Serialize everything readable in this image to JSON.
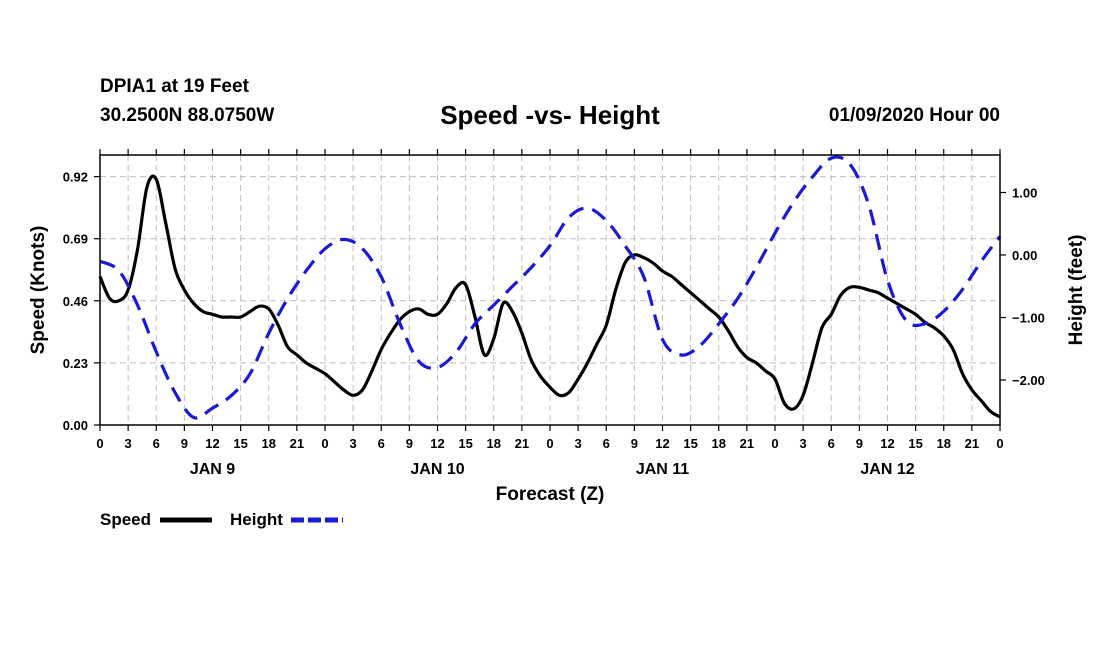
{
  "header": {
    "station": "DPIA1 at 19 Feet",
    "coords": "30.2500N 88.0750W",
    "title": "Speed -vs- Height",
    "datetime": "01/09/2020 Hour 00"
  },
  "colors": {
    "speed": "#000000",
    "height": "#1a1ad6",
    "grid": "#bfbfbf"
  },
  "chart_data": {
    "type": "line",
    "title": "Speed -vs- Height",
    "xlabel": "Forecast (Z)",
    "ylabel_left": "Speed (Knots)",
    "ylabel_right": "Height (feet)",
    "x_range_hours": [
      0,
      96
    ],
    "ylim_left": [
      0,
      1.0
    ],
    "ylim_right": [
      -2.72,
      1.6
    ],
    "yticks_left": [
      0.0,
      0.23,
      0.46,
      0.69,
      0.92
    ],
    "yticks_left_labels": [
      "0.00",
      "0.23",
      "0.46",
      "0.69",
      "0.92"
    ],
    "yticks_right": [
      1.0,
      0.0,
      -1.0,
      -2.0
    ],
    "yticks_right_labels": [
      "1.00",
      "0.00",
      "−1.00",
      "−2.00"
    ],
    "xticks_labels": [
      "0",
      "3",
      "6",
      "9",
      "12",
      "15",
      "18",
      "21",
      "0",
      "3",
      "6",
      "9",
      "12",
      "15",
      "18",
      "21",
      "0",
      "3",
      "6",
      "9",
      "12",
      "15",
      "18",
      "21",
      "0",
      "3",
      "6",
      "9",
      "12",
      "15",
      "18",
      "21",
      "0"
    ],
    "day_labels": [
      {
        "hour": 12,
        "label": "JAN 9"
      },
      {
        "hour": 36,
        "label": "JAN 10"
      },
      {
        "hour": 60,
        "label": "JAN 11"
      },
      {
        "hour": 84,
        "label": "JAN 12"
      }
    ],
    "legend": [
      {
        "name": "Speed",
        "style": "solid"
      },
      {
        "name": "Height",
        "style": "dashed"
      }
    ],
    "series": [
      {
        "name": "Speed",
        "axis": "left",
        "style": "solid",
        "x": [
          0,
          1,
          2,
          3,
          4,
          5,
          6,
          7,
          8,
          9,
          10,
          11,
          12,
          13,
          14,
          15,
          16,
          17,
          18,
          19,
          20,
          21,
          22,
          23,
          24,
          25,
          26,
          27,
          28,
          29,
          30,
          31,
          32,
          33,
          34,
          35,
          36,
          37,
          38,
          39,
          40,
          41,
          42,
          43,
          44,
          45,
          46,
          47,
          48,
          49,
          50,
          51,
          52,
          53,
          54,
          55,
          56,
          57,
          58,
          59,
          60,
          61,
          62,
          63,
          64,
          65,
          66,
          67,
          68,
          69,
          70,
          71,
          72,
          73,
          74,
          75,
          76,
          77,
          78,
          79,
          80,
          81,
          82,
          83,
          84,
          85,
          86,
          87,
          88,
          89,
          90,
          91,
          92,
          93,
          94,
          95,
          96
        ],
        "values": [
          0.55,
          0.47,
          0.46,
          0.5,
          0.65,
          0.88,
          0.91,
          0.75,
          0.58,
          0.5,
          0.45,
          0.42,
          0.41,
          0.4,
          0.4,
          0.4,
          0.42,
          0.44,
          0.43,
          0.37,
          0.29,
          0.26,
          0.23,
          0.21,
          0.19,
          0.16,
          0.13,
          0.11,
          0.13,
          0.2,
          0.28,
          0.34,
          0.39,
          0.42,
          0.43,
          0.41,
          0.41,
          0.45,
          0.51,
          0.52,
          0.4,
          0.26,
          0.32,
          0.45,
          0.42,
          0.34,
          0.24,
          0.18,
          0.14,
          0.11,
          0.12,
          0.17,
          0.23,
          0.3,
          0.37,
          0.5,
          0.6,
          0.63,
          0.62,
          0.6,
          0.57,
          0.55,
          0.52,
          0.49,
          0.46,
          0.43,
          0.4,
          0.35,
          0.29,
          0.25,
          0.23,
          0.2,
          0.17,
          0.08,
          0.06,
          0.11,
          0.23,
          0.36,
          0.41,
          0.48,
          0.51,
          0.51,
          0.5,
          0.49,
          0.47,
          0.45,
          0.43,
          0.41,
          0.38,
          0.36,
          0.33,
          0.28,
          0.19,
          0.13,
          0.09,
          0.05,
          0.03
        ]
      },
      {
        "name": "Height",
        "axis": "right",
        "style": "dashed",
        "x": [
          0,
          2,
          4,
          6,
          8,
          10,
          12,
          14,
          16,
          18,
          20,
          22,
          24,
          26,
          28,
          30,
          32,
          34,
          36,
          38,
          40,
          42,
          44,
          46,
          48,
          50,
          52,
          54,
          56,
          58,
          60,
          62,
          64,
          66,
          68,
          70,
          72,
          74,
          76,
          78,
          80,
          82,
          84,
          86,
          88,
          90,
          92,
          94,
          96
        ],
        "values": [
          -0.1,
          -0.25,
          -0.8,
          -1.55,
          -2.2,
          -2.6,
          -2.45,
          -2.25,
          -1.9,
          -1.25,
          -0.7,
          -0.25,
          0.1,
          0.25,
          0.1,
          -0.35,
          -1.1,
          -1.7,
          -1.8,
          -1.55,
          -1.1,
          -0.8,
          -0.5,
          -0.2,
          0.15,
          0.6,
          0.75,
          0.55,
          0.15,
          -0.35,
          -1.35,
          -1.6,
          -1.45,
          -1.1,
          -0.7,
          -0.2,
          0.35,
          0.85,
          1.25,
          1.55,
          1.45,
          0.8,
          -0.4,
          -1.05,
          -1.1,
          -0.9,
          -0.55,
          -0.1,
          0.3
        ]
      }
    ]
  }
}
